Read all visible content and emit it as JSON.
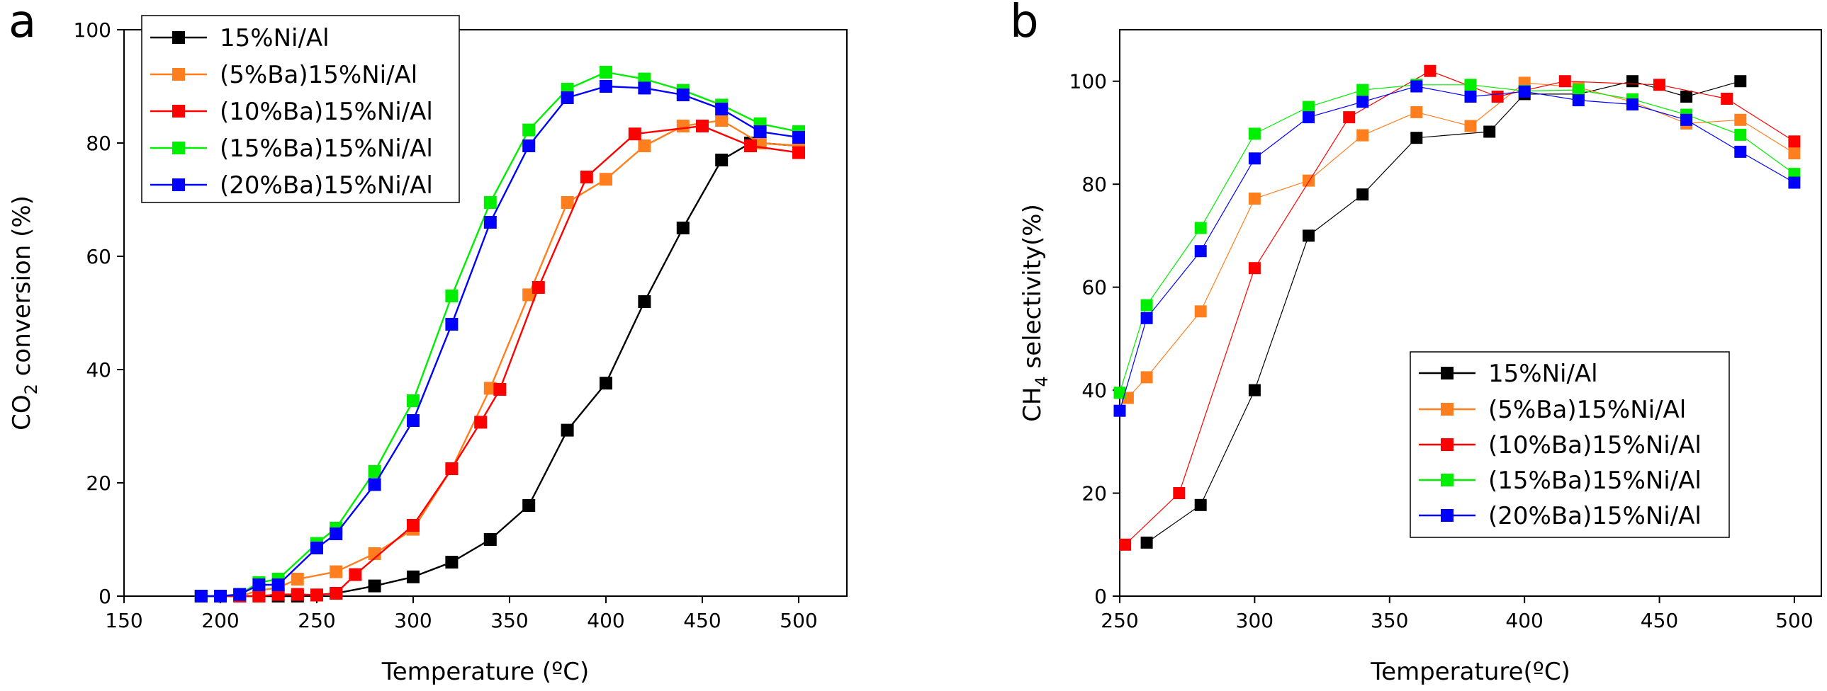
{
  "series_styles": [
    {
      "name": "15%Ni/Al",
      "color": "#000000"
    },
    {
      "name": "(5%Ba)15%Ni/Al",
      "color": "#ff7f1e"
    },
    {
      "name": "(10%Ba)15%Ni/Al",
      "color": "#ff0000"
    },
    {
      "name": "(15%Ba)15%Ni/Al",
      "color": "#00ee00"
    },
    {
      "name": "(20%Ba)15%Ni/Al",
      "color": "#0000ff"
    }
  ],
  "chart_data": [
    {
      "panel": "a",
      "type": "line",
      "title": "",
      "xlabel": "Temperature (ºC)",
      "ylabel": "CO",
      "ylabel_sub": "2",
      "ylabel_tail": " conversion (%)",
      "xlim": [
        150,
        525
      ],
      "ylim": [
        0,
        100
      ],
      "xticks": [
        150,
        200,
        250,
        300,
        350,
        400,
        450,
        500
      ],
      "yticks": [
        0,
        20,
        40,
        60,
        80,
        100
      ],
      "legend": "top-left",
      "series": [
        {
          "name": "15%Ni/Al",
          "x": [
            190,
            200,
            210,
            220,
            230,
            240,
            250,
            260,
            280,
            300,
            320,
            340,
            360,
            380,
            400,
            420,
            440,
            460,
            475,
            480,
            500
          ],
          "y": [
            0,
            0,
            0,
            0,
            0,
            0,
            0.2,
            0.5,
            1.8,
            3.4,
            6,
            10,
            16,
            29.3,
            37.6,
            52,
            65,
            77,
            80,
            80,
            79.5
          ]
        },
        {
          "name": "(5%Ba)15%Ni/Al",
          "x": [
            190,
            200,
            210,
            220,
            230,
            240,
            260,
            280,
            300,
            320,
            340,
            360,
            380,
            400,
            420,
            440,
            460,
            480,
            500
          ],
          "y": [
            0,
            0,
            0,
            1,
            1.5,
            3,
            4.3,
            7.5,
            11.8,
            22.5,
            36.7,
            53.2,
            69.5,
            73.6,
            79.5,
            83,
            84,
            80,
            79.5
          ]
        },
        {
          "name": "(10%Ba)15%Ni/Al",
          "x": [
            190,
            200,
            210,
            220,
            230,
            240,
            250,
            260,
            270,
            300,
            320,
            335,
            345,
            365,
            390,
            415,
            450,
            475,
            500
          ],
          "y": [
            0,
            0,
            0,
            0,
            0.3,
            0.3,
            0.2,
            0.5,
            3.8,
            12.5,
            22.5,
            30.7,
            36.5,
            54.5,
            74,
            81.6,
            83,
            79.5,
            78.3
          ]
        },
        {
          "name": "(15%Ba)15%Ni/Al",
          "x": [
            190,
            200,
            210,
            220,
            230,
            250,
            260,
            280,
            300,
            320,
            340,
            360,
            380,
            400,
            420,
            440,
            460,
            480,
            500
          ],
          "y": [
            0,
            0,
            0.3,
            2.4,
            3,
            9.3,
            12,
            22,
            34.5,
            53,
            69.5,
            82.3,
            89.5,
            92.5,
            91.3,
            89.3,
            86.7,
            83.4,
            82
          ]
        },
        {
          "name": "(20%Ba)15%Ni/Al",
          "x": [
            190,
            200,
            210,
            220,
            230,
            250,
            260,
            280,
            300,
            320,
            340,
            360,
            380,
            400,
            420,
            440,
            460,
            480,
            500
          ],
          "y": [
            0,
            0,
            0.3,
            2,
            2,
            8.5,
            11,
            19.7,
            31,
            48,
            66,
            79.5,
            88,
            90,
            89.7,
            88.5,
            86,
            82,
            81
          ]
        }
      ]
    },
    {
      "panel": "b",
      "type": "line",
      "title": "",
      "xlabel": "Temperature(ºC)",
      "ylabel": "CH",
      "ylabel_sub": "4",
      "ylabel_tail": " selectivity(%)",
      "xlim": [
        250,
        510
      ],
      "ylim": [
        0,
        110
      ],
      "xticks": [
        250,
        300,
        350,
        400,
        450,
        500
      ],
      "yticks": [
        0,
        20,
        40,
        60,
        80,
        100
      ],
      "legend": "lower-right",
      "series": [
        {
          "name": "15%Ni/Al",
          "x": [
            260,
            280,
            300,
            320,
            340,
            360,
            387,
            400,
            420,
            440,
            460,
            480
          ],
          "y": [
            10.4,
            17.7,
            40,
            70,
            78,
            89,
            90.2,
            97.5,
            97.5,
            100,
            97,
            100
          ]
        },
        {
          "name": "(5%Ba)15%Ni/Al",
          "x": [
            253,
            260,
            280,
            300,
            320,
            340,
            360,
            380,
            400,
            420,
            440,
            460,
            480,
            500
          ],
          "y": [
            38.5,
            42.5,
            55.3,
            77.2,
            80.7,
            89.5,
            94,
            91.3,
            99.7,
            98.8,
            96,
            91.8,
            92.5,
            86
          ]
        },
        {
          "name": "(10%Ba)15%Ni/Al",
          "x": [
            252,
            272,
            300,
            335,
            365,
            390,
            415,
            450,
            475,
            500
          ],
          "y": [
            10,
            20,
            63.7,
            93,
            102,
            97,
            100,
            99.3,
            96.6,
            88.3
          ]
        },
        {
          "name": "(15%Ba)15%Ni/Al",
          "x": [
            250,
            260,
            280,
            300,
            320,
            340,
            360,
            380,
            400,
            420,
            440,
            460,
            480,
            500
          ],
          "y": [
            39.5,
            56.5,
            71.5,
            89.8,
            95,
            98.3,
            99.3,
            99.3,
            98.1,
            98.3,
            96.5,
            93.5,
            89.6,
            82
          ]
        },
        {
          "name": "(20%Ba)15%Ni/Al",
          "x": [
            250,
            260,
            280,
            300,
            320,
            340,
            360,
            380,
            400,
            420,
            440,
            460,
            480,
            500
          ],
          "y": [
            36,
            54,
            67,
            85,
            93,
            96,
            99,
            97,
            98,
            96.3,
            95.5,
            92.5,
            86.3,
            80.3
          ]
        }
      ]
    }
  ]
}
